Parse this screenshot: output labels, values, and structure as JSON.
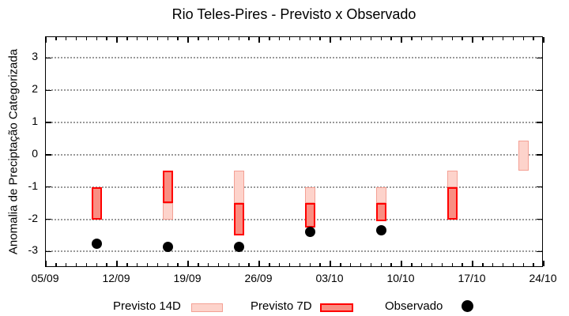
{
  "title": "Rio Teles-Pires - Previsto x Observado",
  "y_axis_label": "Anomalia de Preciptação Categorizada",
  "legend": {
    "items": [
      {
        "label": "Previsto 14D",
        "swatch": "light-pink-box"
      },
      {
        "label": "Previsto 7D",
        "swatch": "red-box"
      },
      {
        "label": "Observado",
        "swatch": "black-dot"
      }
    ]
  },
  "colors": {
    "previsto_14d_fill": "#FDD3CB",
    "previsto_14d_border": "#F4A094",
    "previsto_7d_fill": "#F98E82",
    "previsto_7d_border": "#FF0000",
    "observado": "#000000",
    "grid": "#9A9A9A",
    "axis": "#000000",
    "background": "#FFFFFF"
  },
  "chart_data": {
    "type": "bar",
    "title": "Rio Teles-Pires - Previsto x Observado",
    "xlabel": "",
    "ylabel": "Anomalia de Preciptação Categorizada",
    "x_axis": {
      "tick_labels": [
        "05/09",
        "12/09",
        "19/09",
        "26/09",
        "03/10",
        "10/10",
        "17/10",
        "24/10"
      ],
      "major_tick_interval_days": 7,
      "minor_tick_interval_days": 1,
      "range_days": 49
    },
    "y_axis": {
      "ticks": [
        3,
        2,
        1,
        0,
        -1,
        -2,
        -3
      ],
      "range": [
        -3.5,
        3.65
      ],
      "grid": "horizontal-dotted"
    },
    "legend_position": "bottom",
    "series": [
      {
        "name": "Previsto 14D",
        "type": "range_bar",
        "points": [
          {
            "date": "17/09",
            "day": 12,
            "from": -2,
            "to": -1.5
          },
          {
            "date": "24/09",
            "day": 19,
            "from": -1.5,
            "to": -0.5
          },
          {
            "date": "01/10",
            "day": 26,
            "from": -1.5,
            "to": -1
          },
          {
            "date": "08/10",
            "day": 33,
            "from": -1.5,
            "to": -1
          },
          {
            "date": "15/10",
            "day": 40,
            "from": -1,
            "to": -0.5
          },
          {
            "date": "22/10",
            "day": 47,
            "from": -0.5,
            "to": 0.45
          }
        ]
      },
      {
        "name": "Previsto 7D",
        "type": "range_bar",
        "points": [
          {
            "date": "10/09",
            "day": 5,
            "from": -2,
            "to": -1
          },
          {
            "date": "17/09",
            "day": 12,
            "from": -1.5,
            "to": -0.5
          },
          {
            "date": "24/09",
            "day": 19,
            "from": -2.5,
            "to": -1.5
          },
          {
            "date": "01/10",
            "day": 26,
            "from": -2.25,
            "to": -1.5
          },
          {
            "date": "08/10",
            "day": 33,
            "from": -2.05,
            "to": -1.5
          },
          {
            "date": "15/10",
            "day": 40,
            "from": -2,
            "to": -1
          }
        ]
      },
      {
        "name": "Observado",
        "type": "scatter",
        "points": [
          {
            "date": "10/09",
            "day": 5,
            "value": -2.75
          },
          {
            "date": "17/09",
            "day": 12,
            "value": -2.85
          },
          {
            "date": "24/09",
            "day": 19,
            "value": -2.85
          },
          {
            "date": "01/10",
            "day": 26,
            "value": -2.4
          },
          {
            "date": "08/10",
            "day": 33,
            "value": -2.35
          }
        ]
      }
    ]
  }
}
